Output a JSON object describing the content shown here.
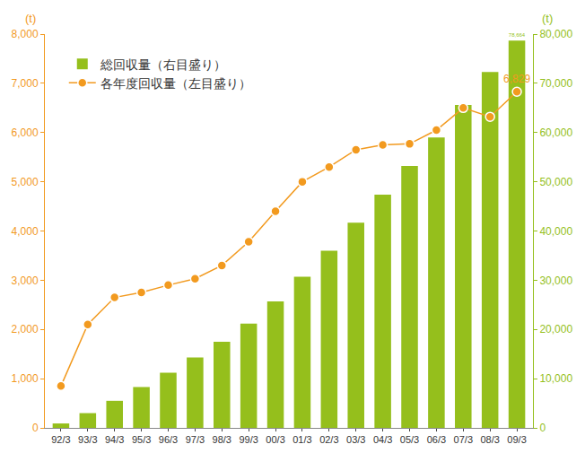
{
  "chart_data": {
    "type": "bar",
    "categories": [
      "92/3",
      "93/3",
      "94/3",
      "95/3",
      "96/3",
      "97/3",
      "98/3",
      "99/3",
      "00/3",
      "01/3",
      "02/3",
      "03/3",
      "04/3",
      "05/3",
      "06/3",
      "07/3",
      "08/3",
      "09/3"
    ],
    "series": [
      {
        "name": "総回収量（右目盛り）",
        "type": "bar",
        "axis": "y2",
        "color": "#95bf1c",
        "values": [
          900,
          3000,
          5500,
          8300,
          11200,
          14300,
          17500,
          21200,
          25700,
          30700,
          36000,
          41700,
          47400,
          53200,
          59000,
          65600,
          72300,
          78664
        ],
        "value_labels": [
          null,
          null,
          null,
          null,
          null,
          null,
          null,
          null,
          null,
          null,
          null,
          null,
          null,
          null,
          null,
          null,
          null,
          "78,664"
        ]
      },
      {
        "name": "各年度回収量（左目盛り）",
        "type": "line",
        "axis": "y",
        "color": "#f29a1f",
        "marker": "circle",
        "values": [
          850,
          2100,
          2650,
          2750,
          2900,
          3030,
          3300,
          3780,
          4400,
          5000,
          5300,
          5650,
          5750,
          5770,
          6050,
          6500,
          6320,
          6829
        ],
        "value_labels": [
          null,
          null,
          null,
          null,
          null,
          null,
          null,
          null,
          null,
          null,
          null,
          null,
          null,
          null,
          null,
          null,
          null,
          "6,829"
        ]
      }
    ],
    "ylabel": "(t)",
    "y2label": "(t)",
    "ylim": [
      0,
      8000
    ],
    "yticks": [
      0,
      {
        "value": 1000,
        "label": "1,000"
      },
      {
        "value": 2000,
        "label": "2,000"
      },
      {
        "value": 3000,
        "label": "3,000"
      },
      {
        "value": 4000,
        "label": "4,000"
      },
      {
        "value": 5000,
        "label": "5,000"
      },
      {
        "value": 6000,
        "label": "6,000"
      },
      {
        "value": 7000,
        "label": "7,000"
      },
      {
        "value": 8000,
        "label": "8,000"
      }
    ],
    "y2lim": [
      0,
      80000
    ],
    "y2ticks": [
      0,
      {
        "value": 10000,
        "label": "10,000"
      },
      {
        "value": 20000,
        "label": "20,000"
      },
      {
        "value": 30000,
        "label": "30,000"
      },
      {
        "value": 40000,
        "label": "40,000"
      },
      {
        "value": 50000,
        "label": "50,000"
      },
      {
        "value": 60000,
        "label": "60,000"
      },
      {
        "value": 70000,
        "label": "70,000"
      },
      {
        "value": 80000,
        "label": "80,000"
      }
    ],
    "grid": false,
    "legend": "upper left"
  }
}
